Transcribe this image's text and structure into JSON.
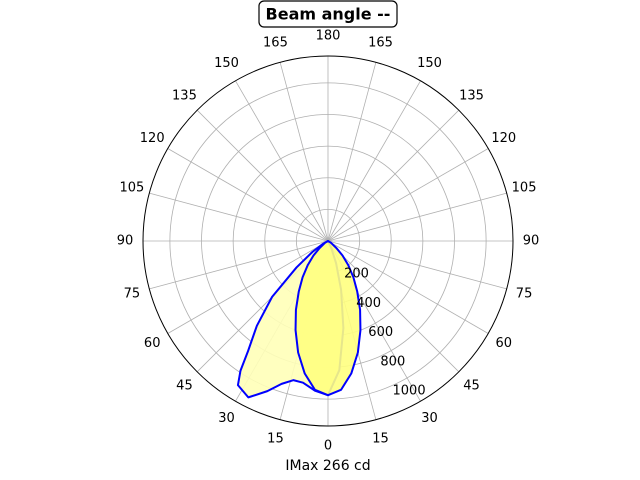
{
  "chart_data": {
    "type": "polar",
    "title": "Beam angle --",
    "x_label": "IMax 266 cd",
    "rlim": [
      0,
      1170
    ],
    "rticks": [
      200,
      400,
      600,
      800,
      1000
    ],
    "xticks": [
      0,
      15,
      30,
      45,
      60,
      75,
      90,
      105,
      120,
      135,
      150,
      165,
      180,
      {
        "value": -165,
        "label": "165"
      },
      {
        "value": -150,
        "label": "150"
      },
      {
        "value": -135,
        "label": "135"
      },
      {
        "value": -120,
        "label": "120"
      },
      {
        "value": -105,
        "label": "105"
      },
      {
        "value": -90,
        "label": "90"
      },
      {
        "value": -75,
        "label": "75"
      },
      {
        "value": -60,
        "label": "60"
      },
      {
        "value": -45,
        "label": "45"
      },
      {
        "value": -30,
        "label": "30"
      },
      {
        "value": -15,
        "label": "15"
      }
    ],
    "grid": true,
    "series": [
      {
        "color": "#0000ff",
        "fill": "#ffffb8",
        "x": [
          -70,
          -60,
          -55,
          -50,
          -45,
          -40,
          -36,
          -34,
          -32,
          -27,
          -22,
          -18,
          -14,
          -10,
          -5,
          0,
          5,
          10,
          15,
          20,
          25,
          30
        ],
        "values": [
          0,
          40,
          120,
          260,
          500,
          700,
          860,
          990,
          1075,
          1110,
          1024,
          950,
          907,
          910,
          950,
          975,
          820,
          560,
          320,
          150,
          50,
          0
        ]
      },
      {
        "color": "#0000ff",
        "fill": "#ffff80",
        "x": [
          -70,
          -60,
          -50,
          -45,
          -40,
          -35,
          -30,
          -25,
          -20,
          -15,
          -10,
          -5,
          0,
          5,
          10,
          15,
          20,
          25,
          30,
          35,
          40,
          45,
          50,
          60,
          70
        ],
        "values": [
          0,
          20,
          70,
          130,
          200,
          280,
          370,
          480,
          600,
          730,
          850,
          945,
          975,
          945,
          850,
          730,
          600,
          480,
          370,
          280,
          200,
          130,
          70,
          20,
          0
        ]
      }
    ]
  }
}
